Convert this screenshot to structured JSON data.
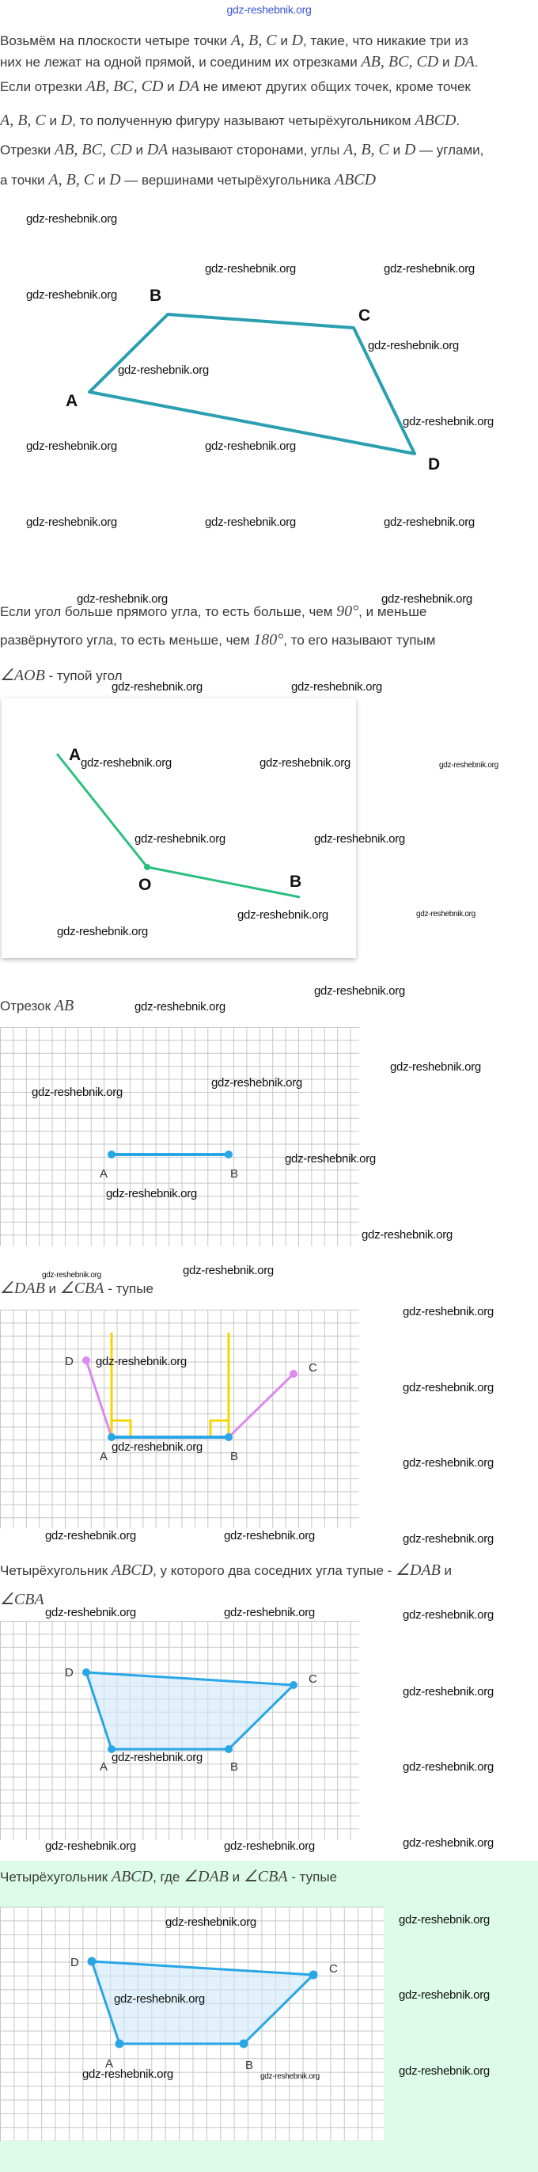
{
  "site_link": "gdz-reshebnik.org",
  "watermark": "gdz-reshebnik.org",
  "colors": {
    "quad_stroke": "#2a9fb0",
    "angle_stroke": "#2dbf7f",
    "segment_blue": "#29a6e6",
    "ray_pink": "#dc8af0",
    "perpendicular_yellow": "#f4d600",
    "quad_fill": "#cfe7f8",
    "answer_bg": "#dcfbe8"
  },
  "intro": {
    "lines": [
      [
        {
          "t": "Возьмём на плоскости четыре точки "
        },
        {
          "m": "A, B, C"
        },
        {
          "t": " и "
        },
        {
          "m": "D"
        },
        {
          "t": ", такие, что никакие три из"
        }
      ],
      [
        {
          "t": "них не лежат на одной прямой, и соединим их отрезками "
        },
        {
          "m": "AB, BC, CD"
        },
        {
          "t": " и "
        },
        {
          "m": "DA"
        },
        {
          "t": "."
        }
      ],
      [
        {
          "t": "Если отрезки "
        },
        {
          "m": "AB, BC, CD"
        },
        {
          "t": " и "
        },
        {
          "m": "DA"
        },
        {
          "t": " не имеют других общих точек, кроме точек"
        }
      ],
      [
        {
          "m": "A, B, C"
        },
        {
          "t": " и "
        },
        {
          "m": "D"
        },
        {
          "t": ", то полученную фигуру называют четырёхугольником "
        },
        {
          "m": "ABCD"
        },
        {
          "t": "."
        }
      ],
      [
        {
          "t": "Отрезки "
        },
        {
          "m": "AB, BC, CD"
        },
        {
          "t": " и "
        },
        {
          "m": "DA"
        },
        {
          "t": " называют сторонами, углы "
        },
        {
          "m": "A, B, C"
        },
        {
          "t": " и "
        },
        {
          "m": "D"
        },
        {
          "t": " — углами,"
        }
      ],
      [
        {
          "t": "а точки "
        },
        {
          "m": "A, B, C"
        },
        {
          "t": " и "
        },
        {
          "m": "D"
        },
        {
          "t": " — вершинами четырёхугольника "
        },
        {
          "m": "ABCD"
        }
      ]
    ],
    "figure_labels": {
      "A": "A",
      "B": "B",
      "C": "C",
      "D": "D"
    }
  },
  "obtuse": {
    "lines": [
      [
        {
          "t": "Если угол больше прямого угла, то есть больше, чем "
        },
        {
          "m": "90°"
        },
        {
          "t": ", и меньше"
        }
      ],
      [
        {
          "t": "развёрнутого угла, то есть меньше, чем "
        },
        {
          "m": "180°"
        },
        {
          "t": ", то его называют тупым"
        }
      ],
      [
        {
          "m": "∠AOB"
        },
        {
          "t": " - тупой угол"
        }
      ]
    ],
    "figure_labels": {
      "A": "A",
      "O": "O",
      "B": "B"
    }
  },
  "segment": {
    "lines": [
      [
        {
          "t": "Отрезок "
        },
        {
          "m": "AB"
        }
      ]
    ],
    "figure_labels": {
      "A": "A",
      "B": "B"
    }
  },
  "angles": {
    "lines": [
      [
        {
          "m": "∠DAB"
        },
        {
          "t": " и "
        },
        {
          "m": "∠CBA"
        },
        {
          "t": " - тупые"
        }
      ]
    ],
    "figure_labels": {
      "A": "A",
      "B": "B",
      "C": "C",
      "D": "D"
    }
  },
  "quad": {
    "lines": [
      [
        {
          "t": "Четырёхугольник "
        },
        {
          "m": "ABCD"
        },
        {
          "t": ", у которого два соседних угла тупые - "
        },
        {
          "m": "∠DAB"
        },
        {
          "t": " и"
        }
      ],
      [
        {
          "m": "∠CBA"
        }
      ]
    ],
    "figure_labels": {
      "A": "A",
      "B": "B",
      "C": "C",
      "D": "D"
    }
  },
  "answer": {
    "lines": [
      [
        {
          "t": "Четырёхугольник "
        },
        {
          "m": "ABCD"
        },
        {
          "t": ", где "
        },
        {
          "m": "∠DAB"
        },
        {
          "t": " и "
        },
        {
          "m": "∠CBA"
        },
        {
          "t": " - тупые"
        }
      ]
    ],
    "figure_labels": {
      "A": "A",
      "B": "B",
      "C": "C",
      "D": "D"
    }
  }
}
